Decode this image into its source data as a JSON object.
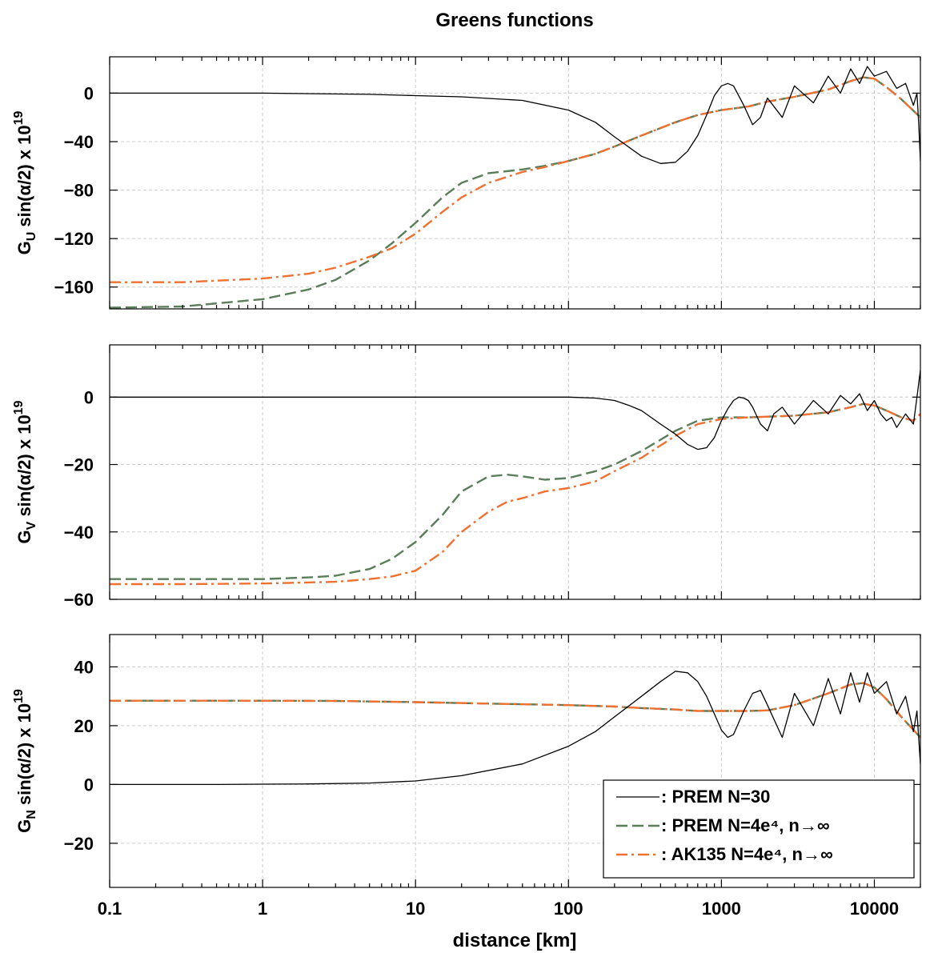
{
  "title": "Greens functions",
  "xlabel": "distance [km]",
  "legend": {
    "placement": "lower-right of bottom panel",
    "entries": [
      {
        "series_id": "prem30",
        "label": ": PREM N=30"
      },
      {
        "series_id": "prem4e4",
        "label": ": PREM N=4e⁴, n→∞"
      },
      {
        "series_id": "ak135",
        "label": ": AK135 N=4e⁴, n→∞"
      }
    ]
  },
  "chart_data": {
    "type": "line",
    "title": "Greens functions",
    "xlabel": "distance [km]",
    "xscale": "log",
    "xlim": [
      0.1,
      20000
    ],
    "xticks": [
      0.1,
      1,
      10,
      100,
      1000,
      10000
    ],
    "xtick_labels": [
      "0.1",
      "1",
      "10",
      "100",
      "1000",
      "10000"
    ],
    "grid": true,
    "series_styles": {
      "prem30": {
        "color": "#000000",
        "dash": "solid"
      },
      "prem4e4": {
        "color": "#5a7d5a",
        "dash": "dashed"
      },
      "ak135": {
        "color": "#f07030",
        "dash": "dashdot"
      }
    },
    "panels": [
      {
        "id": "GU",
        "ylabel": "G_U sin(α/2) x 10^19",
        "ylim": [
          -178,
          30
        ],
        "yticks": [
          0,
          -40,
          -80,
          -120,
          -160
        ],
        "ytick_labels": [
          "0",
          "−40",
          "−80",
          "−120",
          "−160"
        ],
        "series": [
          {
            "id": "prem4e4",
            "x": [
              0.1,
              0.3,
              1,
              2,
              3,
              5,
              7,
              10,
              15,
              20,
              30,
              50,
              70,
              100,
              150,
              200,
              300,
              500,
              700,
              1000,
              1500,
              2000,
              3000,
              5000,
              7000,
              8500,
              10000,
              12000,
              15000,
              20000
            ],
            "y": [
              -177,
              -176,
              -170,
              -162,
              -154,
              -138,
              -124,
              -107,
              -86,
              -74,
              -66,
              -63,
              -60,
              -56,
              -50,
              -44,
              -35,
              -24,
              -18,
              -14,
              -11,
              -7,
              -3,
              3,
              10,
              13,
              12,
              5,
              -5,
              -20
            ]
          },
          {
            "id": "ak135",
            "x": [
              0.1,
              0.3,
              1,
              2,
              3,
              5,
              7,
              10,
              15,
              20,
              30,
              50,
              70,
              100,
              150,
              200,
              300,
              500,
              700,
              1000,
              1500,
              2000,
              3000,
              5000,
              7000,
              8500,
              10000,
              12000,
              15000,
              20000
            ],
            "y": [
              -156,
              -156,
              -153,
              -149,
              -144,
              -135,
              -128,
              -116,
              -98,
              -86,
              -74,
              -65,
              -61,
              -56,
              -50,
              -44,
              -35,
              -24,
              -18,
              -14,
              -11,
              -7,
              -3,
              3,
              10,
              13,
              12,
              5,
              -5,
              -20
            ]
          },
          {
            "id": "prem30",
            "x": [
              0.1,
              1,
              5,
              10,
              20,
              50,
              100,
              150,
              200,
              300,
              400,
              500,
              600,
              700,
              800,
              900,
              1000,
              1100,
              1200,
              1400,
              1600,
              1800,
              2000,
              2500,
              3000,
              4000,
              5000,
              6000,
              7000,
              8000,
              9000,
              10000,
              12000,
              14000,
              16000,
              18000,
              19000,
              19500,
              20000
            ],
            "y": [
              0,
              0,
              -1,
              -2,
              -3,
              -6,
              -14,
              -24,
              -36,
              -52,
              -58,
              -57,
              -48,
              -35,
              -18,
              -2,
              6,
              8,
              6,
              -10,
              -26,
              -20,
              -4,
              -20,
              6,
              -8,
              14,
              0,
              20,
              8,
              22,
              14,
              18,
              4,
              8,
              -10,
              0,
              -25,
              -56
            ]
          }
        ]
      },
      {
        "id": "GV",
        "ylabel": "G_V sin(α/2) x 10^19",
        "ylim": [
          -60,
          15.5
        ],
        "yticks": [
          0,
          -20,
          -40,
          -60
        ],
        "ytick_labels": [
          "0",
          "−20",
          "−40",
          "−60"
        ],
        "series": [
          {
            "id": "prem4e4",
            "x": [
              0.1,
              0.3,
              1,
              2,
              3,
              5,
              7,
              10,
              15,
              20,
              30,
              40,
              50,
              70,
              100,
              150,
              200,
              300,
              500,
              700,
              1000,
              1500,
              2000,
              3000,
              5000,
              7000,
              8500,
              10000,
              12000,
              15000,
              18000,
              20000
            ],
            "y": [
              -54,
              -54,
              -54,
              -53.5,
              -53,
              -51,
              -48,
              -43,
              -35,
              -28,
              -23.5,
              -23,
              -23.5,
              -24.5,
              -24,
              -22,
              -20,
              -16,
              -10,
              -7,
              -6,
              -6,
              -5.8,
              -5.5,
              -4.5,
              -3,
              -2,
              -2.5,
              -4,
              -6,
              -7,
              -5
            ]
          },
          {
            "id": "ak135",
            "x": [
              0.1,
              0.3,
              1,
              2,
              3,
              5,
              7,
              10,
              15,
              20,
              30,
              40,
              50,
              70,
              100,
              150,
              200,
              300,
              500,
              700,
              1000,
              1500,
              2000,
              3000,
              5000,
              7000,
              8500,
              10000,
              12000,
              15000,
              18000,
              20000
            ],
            "y": [
              -55.5,
              -55.5,
              -55.3,
              -55,
              -54.8,
              -54,
              -53.2,
              -51.5,
              -46,
              -40,
              -34,
              -31,
              -30,
              -28,
              -27,
              -25,
              -22,
              -18,
              -11.5,
              -8,
              -6.5,
              -6,
              -5.8,
              -5.5,
              -4.5,
              -3,
              -2,
              -2.5,
              -4,
              -6,
              -7,
              -5
            ]
          },
          {
            "id": "prem30",
            "x": [
              0.1,
              1,
              10,
              50,
              100,
              150,
              200,
              250,
              300,
              400,
              500,
              600,
              700,
              800,
              900,
              1000,
              1100,
              1200,
              1300,
              1400,
              1500,
              1600,
              1800,
              2000,
              2200,
              2500,
              3000,
              4000,
              5000,
              6000,
              7000,
              8000,
              9000,
              10000,
              11000,
              12000,
              13000,
              14000,
              16000,
              18000,
              19000,
              20000
            ],
            "y": [
              0,
              0,
              0,
              0,
              0,
              -0.3,
              -1,
              -2.5,
              -4,
              -8,
              -11,
              -14,
              -15.5,
              -15,
              -12,
              -7,
              -3.5,
              -1,
              0,
              -0.3,
              -1,
              -3,
              -8,
              -10,
              -5,
              -3,
              -8,
              -1,
              -5,
              0.5,
              -2,
              1,
              -4,
              -1,
              -5,
              -7,
              -6,
              -9,
              -5,
              -8,
              0,
              8
            ]
          }
        ]
      },
      {
        "id": "GN",
        "ylabel": "G_N sin(α/2) x 10^19",
        "ylim": [
          -35,
          51
        ],
        "yticks": [
          40,
          20,
          0,
          -20
        ],
        "ytick_labels": [
          "40",
          "20",
          "0",
          "−20"
        ],
        "series": [
          {
            "id": "prem4e4",
            "x": [
              0.1,
              0.3,
              1,
              3,
              10,
              30,
              100,
              200,
              300,
              500,
              700,
              1000,
              1500,
              2000,
              3000,
              5000,
              7000,
              8500,
              10000,
              12000,
              15000,
              20000
            ],
            "y": [
              28.5,
              28.5,
              28.5,
              28.4,
              28,
              27.5,
              27,
              26.5,
              26,
              25.5,
              25,
              25,
              25,
              25.2,
              27,
              31,
              34,
              34.5,
              33,
              29,
              23,
              16
            ]
          },
          {
            "id": "ak135",
            "x": [
              0.1,
              0.3,
              1,
              3,
              10,
              30,
              100,
              200,
              300,
              500,
              700,
              1000,
              1500,
              2000,
              3000,
              5000,
              7000,
              8500,
              10000,
              12000,
              15000,
              20000
            ],
            "y": [
              28.5,
              28.5,
              28.5,
              28.4,
              28,
              27.5,
              27,
              26.5,
              26,
              25.5,
              25,
              25,
              25,
              25.2,
              27,
              31,
              34,
              34.5,
              33,
              29,
              23,
              16
            ]
          },
          {
            "id": "prem30",
            "x": [
              0.1,
              0.5,
              1,
              2,
              5,
              10,
              20,
              50,
              100,
              150,
              200,
              300,
              400,
              500,
              600,
              700,
              800,
              900,
              1000,
              1100,
              1200,
              1400,
              1600,
              1800,
              2000,
              2500,
              3000,
              4000,
              5000,
              6000,
              7000,
              8000,
              9000,
              10000,
              12000,
              14000,
              16000,
              18000,
              19000,
              20000
            ],
            "y": [
              0,
              0,
              0.1,
              0.2,
              0.5,
              1.2,
              3,
              7,
              13,
              18,
              23,
              30,
              35,
              38.5,
              38,
              35,
              30,
              24,
              18.5,
              16,
              17,
              25,
              31,
              32,
              27,
              16,
              31,
              20,
              36,
              24,
              38,
              28,
              38,
              31,
              35,
              24,
              30,
              18,
              25,
              7
            ]
          }
        ]
      }
    ]
  }
}
